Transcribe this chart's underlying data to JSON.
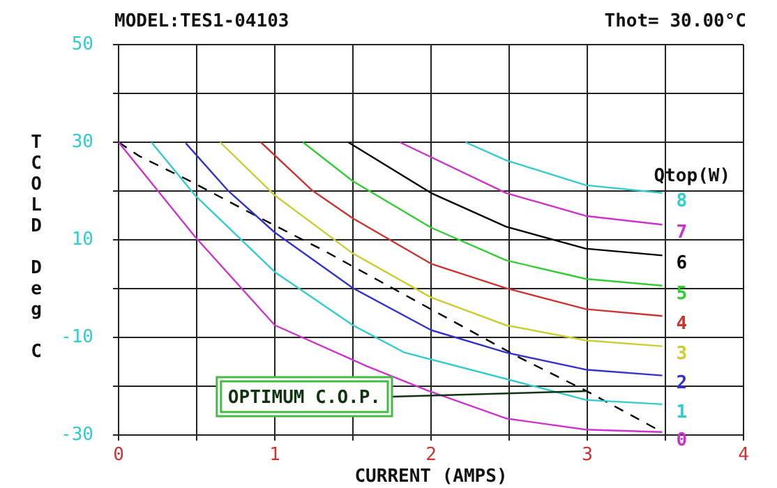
{
  "chart_data": {
    "type": "line",
    "title": "MODEL:TES1-04103",
    "subtitle": "Thot= 30.00°C",
    "xlabel": "CURRENT (AMPS)",
    "ylabel": "TCOLD Deg C",
    "legend_title": "Qtop(W)",
    "xlim": [
      0,
      4
    ],
    "ylim": [
      -30,
      50
    ],
    "xticks": [
      0,
      {
        "value": 0.5,
        "label": null
      },
      1,
      {
        "value": 1.5,
        "label": null
      },
      2,
      {
        "value": 2.5,
        "label": null
      },
      3,
      {
        "value": 3.5,
        "label": null
      },
      4
    ],
    "yticks": [
      -30,
      {
        "value": -20,
        "label": null
      },
      -10,
      {
        "value": 0,
        "label": null
      },
      10,
      {
        "value": 20,
        "label": null
      },
      30,
      {
        "value": 40,
        "label": null
      },
      50
    ],
    "grid": true,
    "marker": "none",
    "annotations": [
      {
        "text": "OPTIMUM C.O.P.",
        "x": 3,
        "y": -21
      }
    ],
    "series": [
      {
        "name": "0",
        "color": "#cc33cc",
        "x": [
          0,
          0.49,
          1.0,
          1.59,
          1.98,
          2.48,
          2.99,
          3.48
        ],
        "values": [
          30,
          10.6,
          -7.5,
          -15.9,
          -20.9,
          -26.6,
          -28.9,
          -29.4
        ]
      },
      {
        "name": "1",
        "color": "#33cccc",
        "x": [
          0.21,
          0.49,
          1.0,
          1.5,
          1.83,
          2.48,
          2.99,
          3.48
        ],
        "values": [
          30,
          19.1,
          3.4,
          -7.5,
          -13.1,
          -18.5,
          -22.8,
          -23.7
        ]
      },
      {
        "name": "2",
        "color": "#3333cc",
        "x": [
          0.43,
          0.7,
          1.0,
          1.5,
          2.0,
          2.48,
          2.99,
          3.48
        ],
        "values": [
          29.8,
          20.1,
          11.5,
          0.1,
          -8.5,
          -13.1,
          -16.6,
          -17.8
        ]
      },
      {
        "name": "3",
        "color": "#cccc33",
        "x": [
          0.65,
          1.0,
          1.5,
          2.0,
          2.48,
          2.99,
          3.48
        ],
        "values": [
          30,
          19.1,
          7.2,
          -1.8,
          -7.5,
          -10.6,
          -11.8
        ]
      },
      {
        "name": "4",
        "color": "#cc3333",
        "x": [
          0.91,
          1.24,
          1.5,
          2.0,
          2.48,
          2.99,
          3.48
        ],
        "values": [
          30,
          20.1,
          14.4,
          5.1,
          0.1,
          -4.2,
          -5.6
        ]
      },
      {
        "name": "5",
        "color": "#33cc33",
        "x": [
          1.18,
          1.5,
          2.0,
          2.48,
          2.99,
          3.48
        ],
        "values": [
          30,
          22,
          12.5,
          5.8,
          2,
          0.6
        ]
      },
      {
        "name": "6",
        "color": "#000000",
        "x": [
          1.47,
          2.0,
          2.48,
          2.99,
          3.48
        ],
        "values": [
          30,
          19.6,
          12.7,
          8.2,
          6.8
        ]
      },
      {
        "name": "7",
        "color": "#cc33cc",
        "x": [
          1.8,
          2.48,
          2.99,
          3.48
        ],
        "values": [
          30,
          19.6,
          14.9,
          13.1
        ]
      },
      {
        "name": "8",
        "color": "#33cccc",
        "x": [
          2.22,
          2.48,
          2.99,
          3.48
        ],
        "values": [
          30,
          26.3,
          21.2,
          19.6
        ]
      },
      {
        "color": "#000000",
        "line_style": "dashed",
        "x": [
          0,
          0.13,
          0.46,
          0.88,
          1.32,
          1.89,
          2.57,
          2.99,
          3.48
        ],
        "values": [
          30,
          27.2,
          22,
          14.9,
          7.7,
          -2.3,
          -14.2,
          -20.9,
          -29.4
        ]
      }
    ]
  }
}
